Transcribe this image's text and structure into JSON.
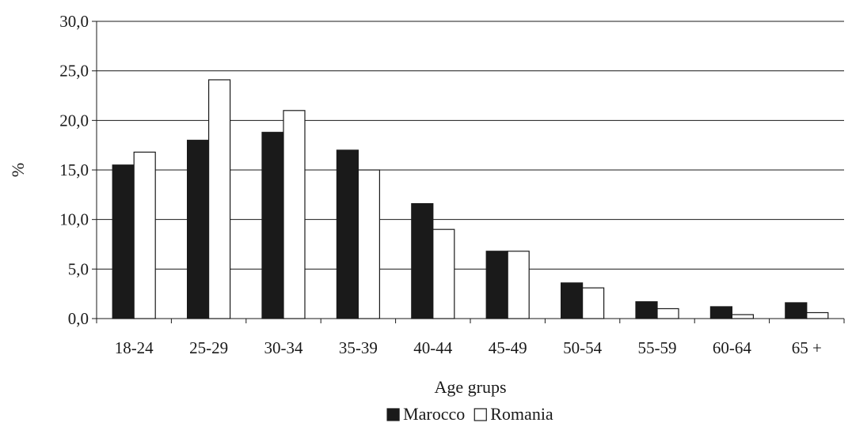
{
  "chart_data": {
    "type": "bar",
    "title": "",
    "xlabel": "Age grups",
    "ylabel": "%",
    "categories": [
      "18-24",
      "25-29",
      "30-34",
      "35-39",
      "40-44",
      "45-49",
      "50-54",
      "55-59",
      "60-64",
      "65 +"
    ],
    "series": [
      {
        "name": "Marocco",
        "color": "#1a1a1a",
        "values": [
          15.5,
          18.0,
          18.8,
          17.0,
          11.6,
          6.8,
          3.6,
          1.7,
          1.2,
          1.6
        ]
      },
      {
        "name": "Romania",
        "color": "#ffffff",
        "values": [
          16.8,
          24.1,
          21.0,
          15.0,
          9.0,
          6.8,
          3.1,
          1.0,
          0.4,
          0.6
        ]
      }
    ],
    "ylim": [
      0,
      30
    ],
    "yticks": [
      "0,0",
      "5,0",
      "10,0",
      "15,0",
      "20,0",
      "25,0",
      "30,0"
    ],
    "grid": true,
    "legend": "bottom-center"
  }
}
